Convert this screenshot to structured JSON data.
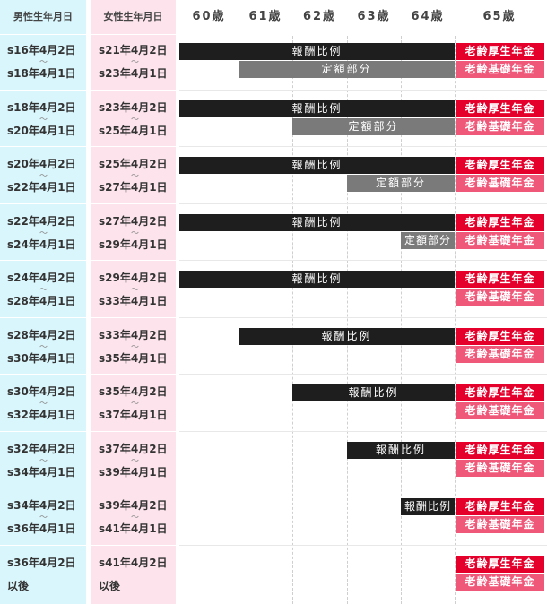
{
  "headers": {
    "male": "男性生年月日",
    "female": "女性生年月日",
    "ages": [
      "60歳",
      "61歳",
      "62歳",
      "63歳",
      "64歳",
      "65歳"
    ]
  },
  "bar_labels": {
    "earnings_related": "報酬比例",
    "fixed": "定額部分",
    "employees_pension": "老齢厚生年金",
    "basic_pension": "老齢基礎年金"
  },
  "tilde": "～",
  "colors": {
    "male_column": "#d9f6fc",
    "female_column": "#fde4ec",
    "earnings_related": "#1e1e1e",
    "fixed": "#7a7a7a",
    "employees_pension": "#e4002b",
    "basic_pension": "#f0587a"
  },
  "chart_data": {
    "type": "table",
    "age_axis": [
      60,
      61,
      62,
      63,
      64,
      65
    ],
    "rows": [
      {
        "male_from": "s16年4月2日",
        "male_to": "s18年4月1日",
        "female_from": "s21年4月2日",
        "female_to": "s23年4月1日",
        "earnings_start": 60,
        "fixed_start": 61,
        "pension_start": 65
      },
      {
        "male_from": "s18年4月2日",
        "male_to": "s20年4月1日",
        "female_from": "s23年4月2日",
        "female_to": "s25年4月1日",
        "earnings_start": 60,
        "fixed_start": 62,
        "pension_start": 65
      },
      {
        "male_from": "s20年4月2日",
        "male_to": "s22年4月1日",
        "female_from": "s25年4月2日",
        "female_to": "s27年4月1日",
        "earnings_start": 60,
        "fixed_start": 63,
        "pension_start": 65
      },
      {
        "male_from": "s22年4月2日",
        "male_to": "s24年4月1日",
        "female_from": "s27年4月2日",
        "female_to": "s29年4月1日",
        "earnings_start": 60,
        "fixed_start": 64,
        "pension_start": 65
      },
      {
        "male_from": "s24年4月2日",
        "male_to": "s28年4月1日",
        "female_from": "s29年4月2日",
        "female_to": "s33年4月1日",
        "earnings_start": 60,
        "fixed_start": null,
        "pension_start": 65
      },
      {
        "male_from": "s28年4月2日",
        "male_to": "s30年4月1日",
        "female_from": "s33年4月2日",
        "female_to": "s35年4月1日",
        "earnings_start": 61,
        "fixed_start": null,
        "pension_start": 65
      },
      {
        "male_from": "s30年4月2日",
        "male_to": "s32年4月1日",
        "female_from": "s35年4月2日",
        "female_to": "s37年4月1日",
        "earnings_start": 62,
        "fixed_start": null,
        "pension_start": 65
      },
      {
        "male_from": "s32年4月2日",
        "male_to": "s34年4月1日",
        "female_from": "s37年4月2日",
        "female_to": "s39年4月1日",
        "earnings_start": 63,
        "fixed_start": null,
        "pension_start": 65
      },
      {
        "male_from": "s34年4月2日",
        "male_to": "s36年4月1日",
        "female_from": "s39年4月2日",
        "female_to": "s41年4月1日",
        "earnings_start": 64,
        "fixed_start": null,
        "pension_start": 65
      },
      {
        "male_from": "s36年4月2日",
        "male_to": "以後",
        "female_from": "s41年4月2日",
        "female_to": "以後",
        "earnings_start": null,
        "fixed_start": null,
        "pension_start": 65
      }
    ]
  }
}
